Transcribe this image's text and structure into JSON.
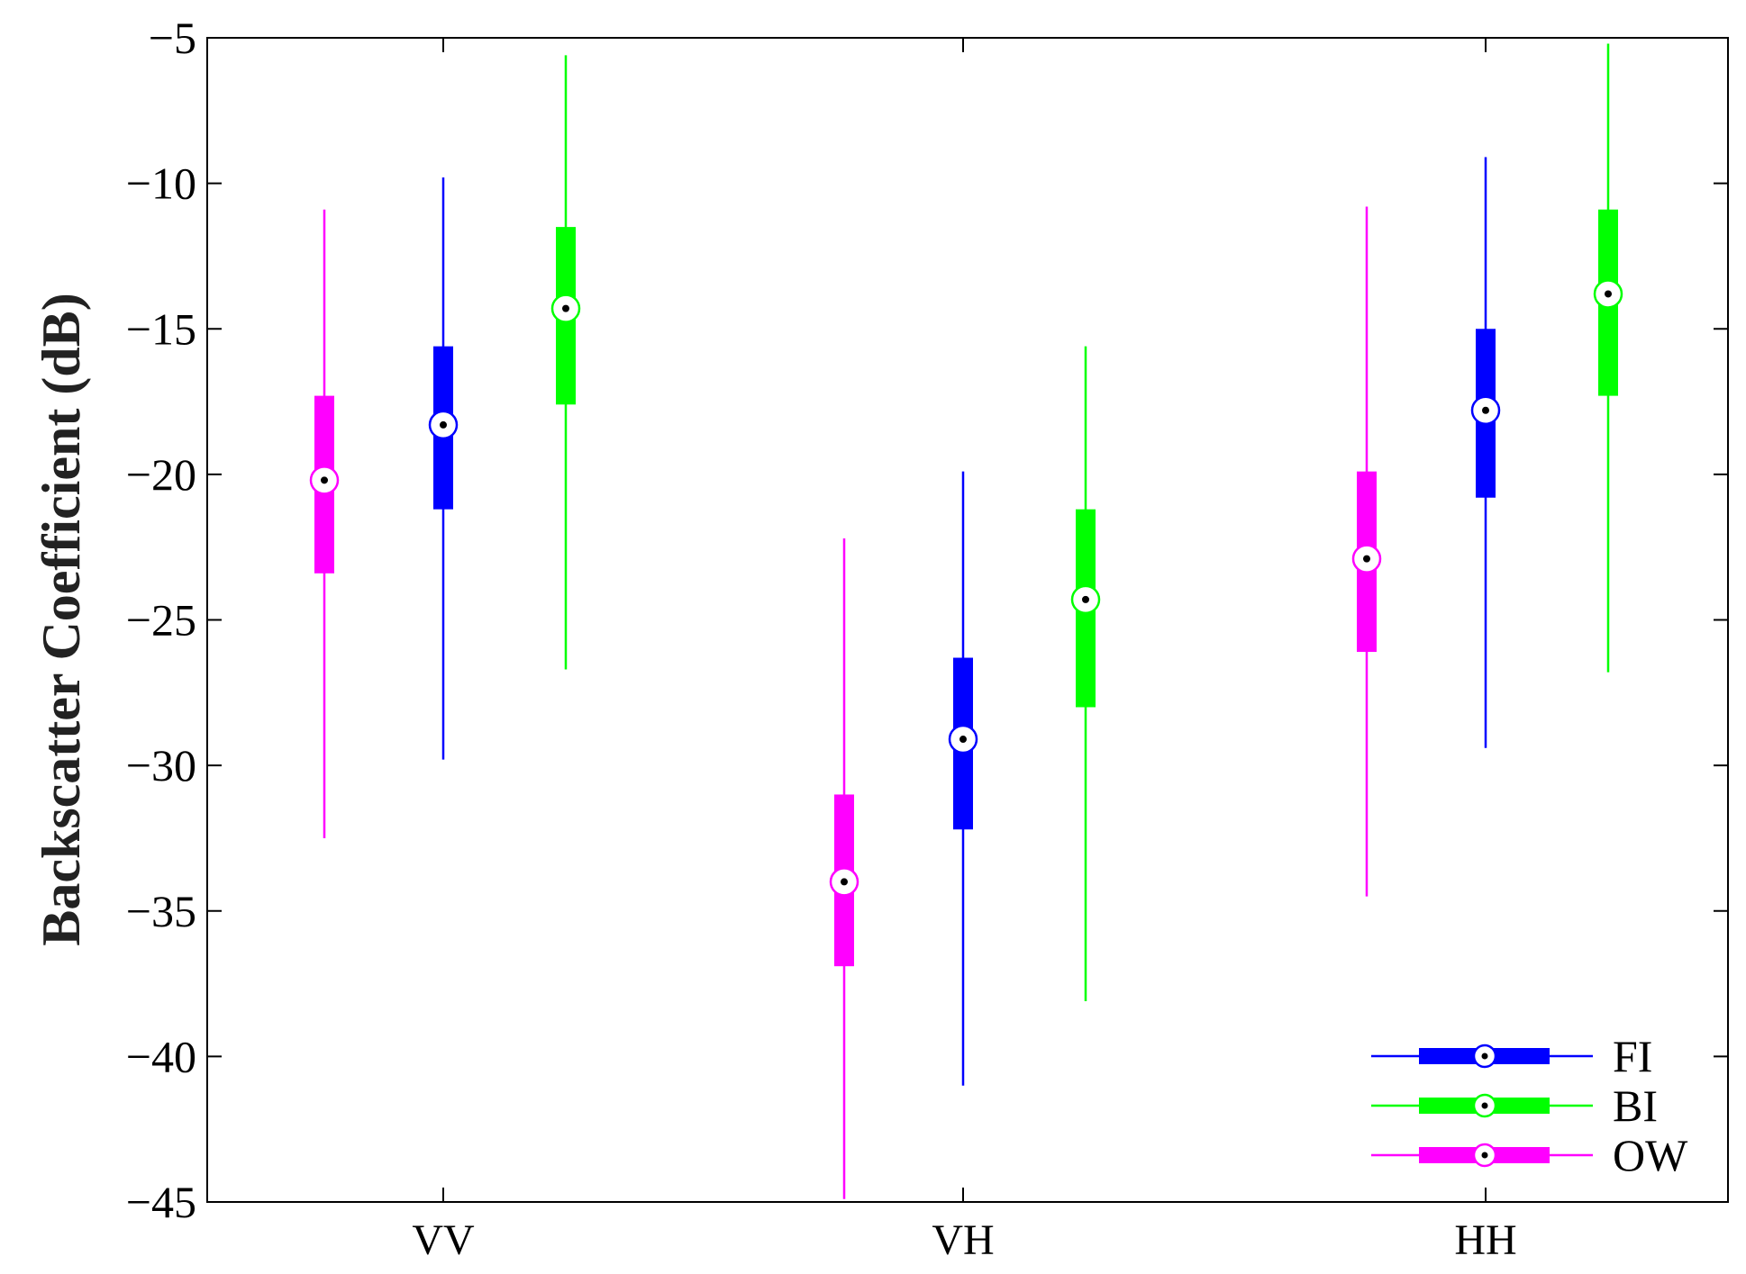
{
  "chart_data": {
    "type": "boxplot",
    "ylabel": "Backscatter Coefficient (dB)",
    "xlabel": "",
    "ylim": [
      -45,
      -5
    ],
    "yticks": [
      -5,
      -10,
      -15,
      -20,
      -25,
      -30,
      -35,
      -40,
      -45
    ],
    "ytick_labels": [
      "−5",
      "−10",
      "−15",
      "−20",
      "−25",
      "−30",
      "−35",
      "−40",
      "−45"
    ],
    "categories": [
      "VV",
      "VH",
      "HH"
    ],
    "legend_placement": "bottom-right",
    "grid": false,
    "series": [
      {
        "name": "OW",
        "color": "#ff00ff",
        "boxes": [
          {
            "whisker_low": -32.5,
            "q1": -23.4,
            "median": -20.2,
            "q3": -17.3,
            "whisker_high": -10.9
          },
          {
            "whisker_low": -44.9,
            "q1": -36.9,
            "median": -34.0,
            "q3": -31.0,
            "whisker_high": -22.2
          },
          {
            "whisker_low": -34.5,
            "q1": -26.1,
            "median": -22.9,
            "q3": -19.9,
            "whisker_high": -10.8
          }
        ]
      },
      {
        "name": "FI",
        "color": "#0000ff",
        "boxes": [
          {
            "whisker_low": -29.8,
            "q1": -21.2,
            "median": -18.3,
            "q3": -15.6,
            "whisker_high": -9.8
          },
          {
            "whisker_low": -41.0,
            "q1": -32.2,
            "median": -29.1,
            "q3": -26.3,
            "whisker_high": -19.9
          },
          {
            "whisker_low": -29.4,
            "q1": -20.8,
            "median": -17.8,
            "q3": -15.0,
            "whisker_high": -9.1
          }
        ]
      },
      {
        "name": "BI",
        "color": "#00ff00",
        "boxes": [
          {
            "whisker_low": -26.7,
            "q1": -17.6,
            "median": -14.3,
            "q3": -11.5,
            "whisker_high": -5.6
          },
          {
            "whisker_low": -38.1,
            "q1": -28.0,
            "median": -24.3,
            "q3": -21.2,
            "whisker_high": -15.6
          },
          {
            "whisker_low": -26.8,
            "q1": -17.3,
            "median": -13.8,
            "q3": -10.9,
            "whisker_high": -5.2
          }
        ]
      }
    ],
    "legend_order": [
      "FI",
      "BI",
      "OW"
    ]
  }
}
